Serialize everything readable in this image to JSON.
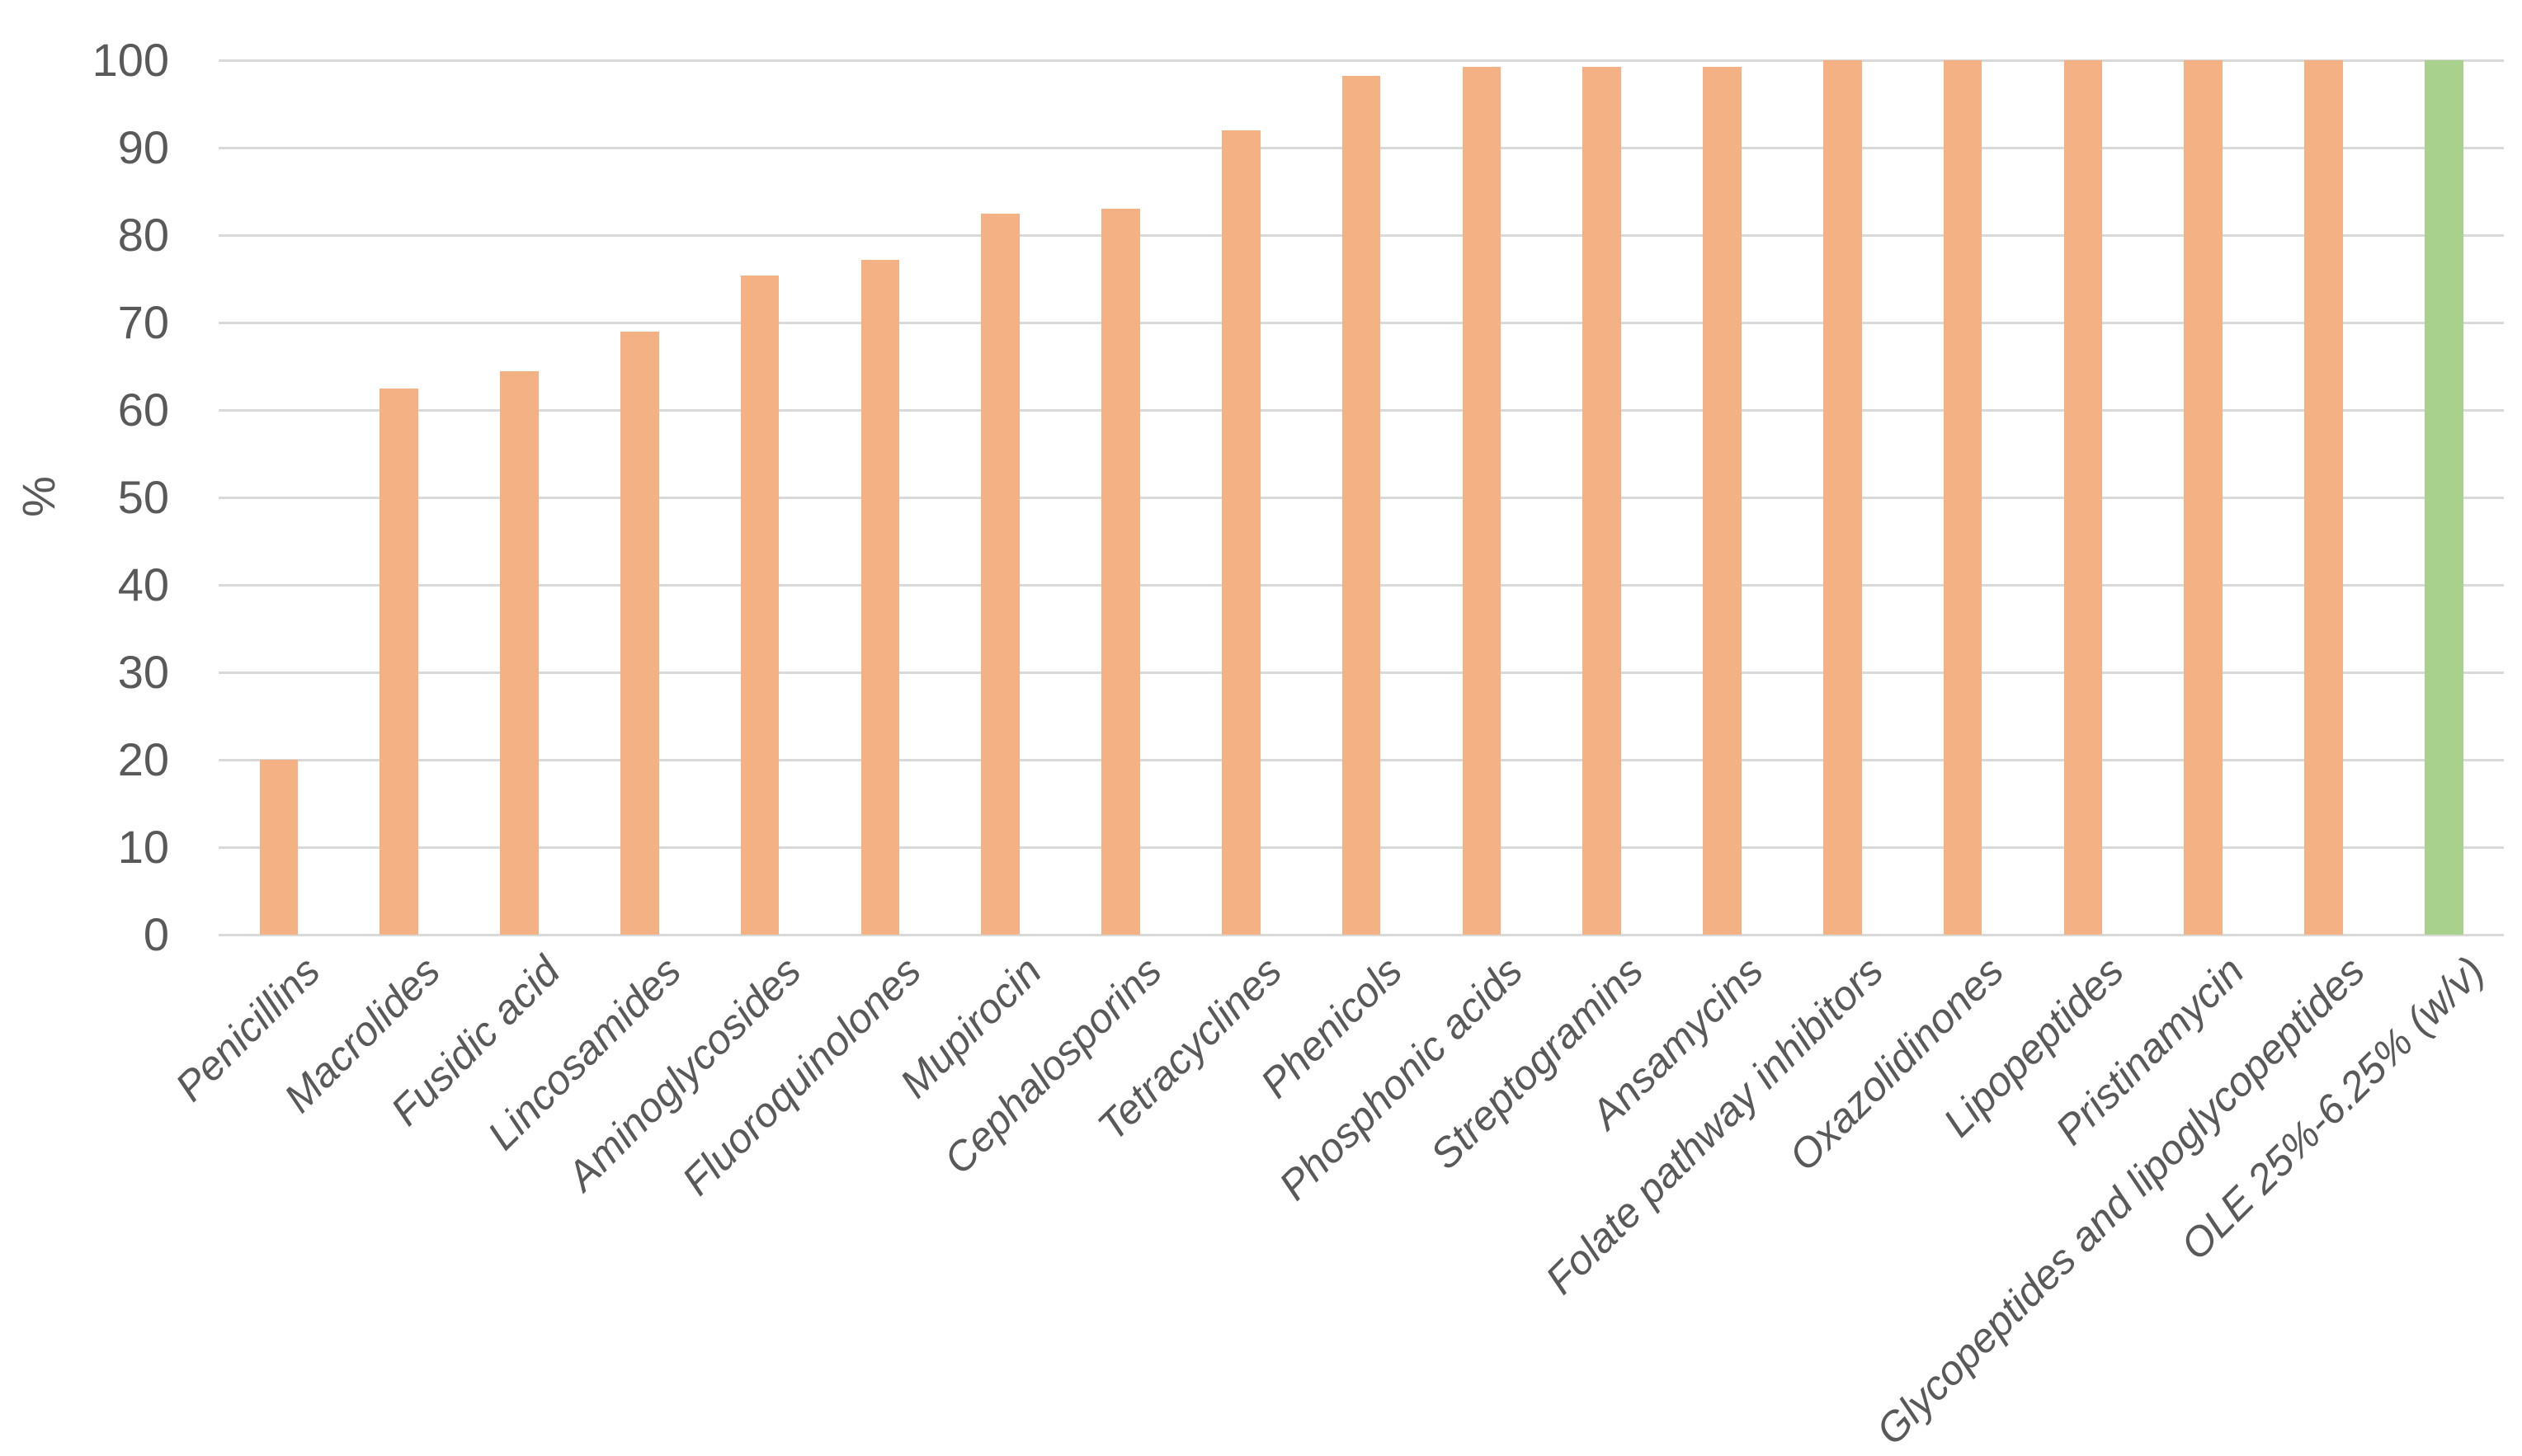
{
  "chart_data": {
    "type": "bar",
    "title": "",
    "xlabel": "",
    "ylabel": "%",
    "ylim": [
      0,
      100
    ],
    "yticks": [
      0,
      10,
      20,
      30,
      40,
      50,
      60,
      70,
      80,
      90,
      100
    ],
    "grid": true,
    "legend": false,
    "categories": [
      "Penicillins",
      "Macrolides",
      "Fusidic acid",
      "Lincosamides",
      "Aminoglycosides",
      "Fluoroquinolones",
      "Mupirocin",
      "Cephalosporins",
      "Tetracyclines",
      "Phenicols",
      "Phosphonic acids",
      "Streptogramins",
      "Ansamycins",
      "Folate pathway inhibitors",
      "Oxazolidinones",
      "Lipopeptides",
      "Pristinamycin",
      "Glycopeptides and lipoglycopeptides",
      "OLE 25%-6.25% (w/v)"
    ],
    "values": [
      20,
      62.5,
      64.4,
      69,
      75.4,
      77.2,
      82.5,
      83,
      92,
      98.2,
      99.2,
      99.2,
      99.2,
      100,
      100,
      100,
      100,
      100,
      100
    ],
    "bar_colors": [
      "#f4b183",
      "#f4b183",
      "#f4b183",
      "#f4b183",
      "#f4b183",
      "#f4b183",
      "#f4b183",
      "#f4b183",
      "#f4b183",
      "#f4b183",
      "#f4b183",
      "#f4b183",
      "#f4b183",
      "#f4b183",
      "#f4b183",
      "#f4b183",
      "#f4b183",
      "#f4b183",
      "#a9d18e"
    ],
    "colors": {
      "default_bar": "#f4b183",
      "highlight_bar": "#a9d18e",
      "gridline": "#d9d9d9",
      "text": "#595959",
      "background": "#ffffff"
    }
  }
}
